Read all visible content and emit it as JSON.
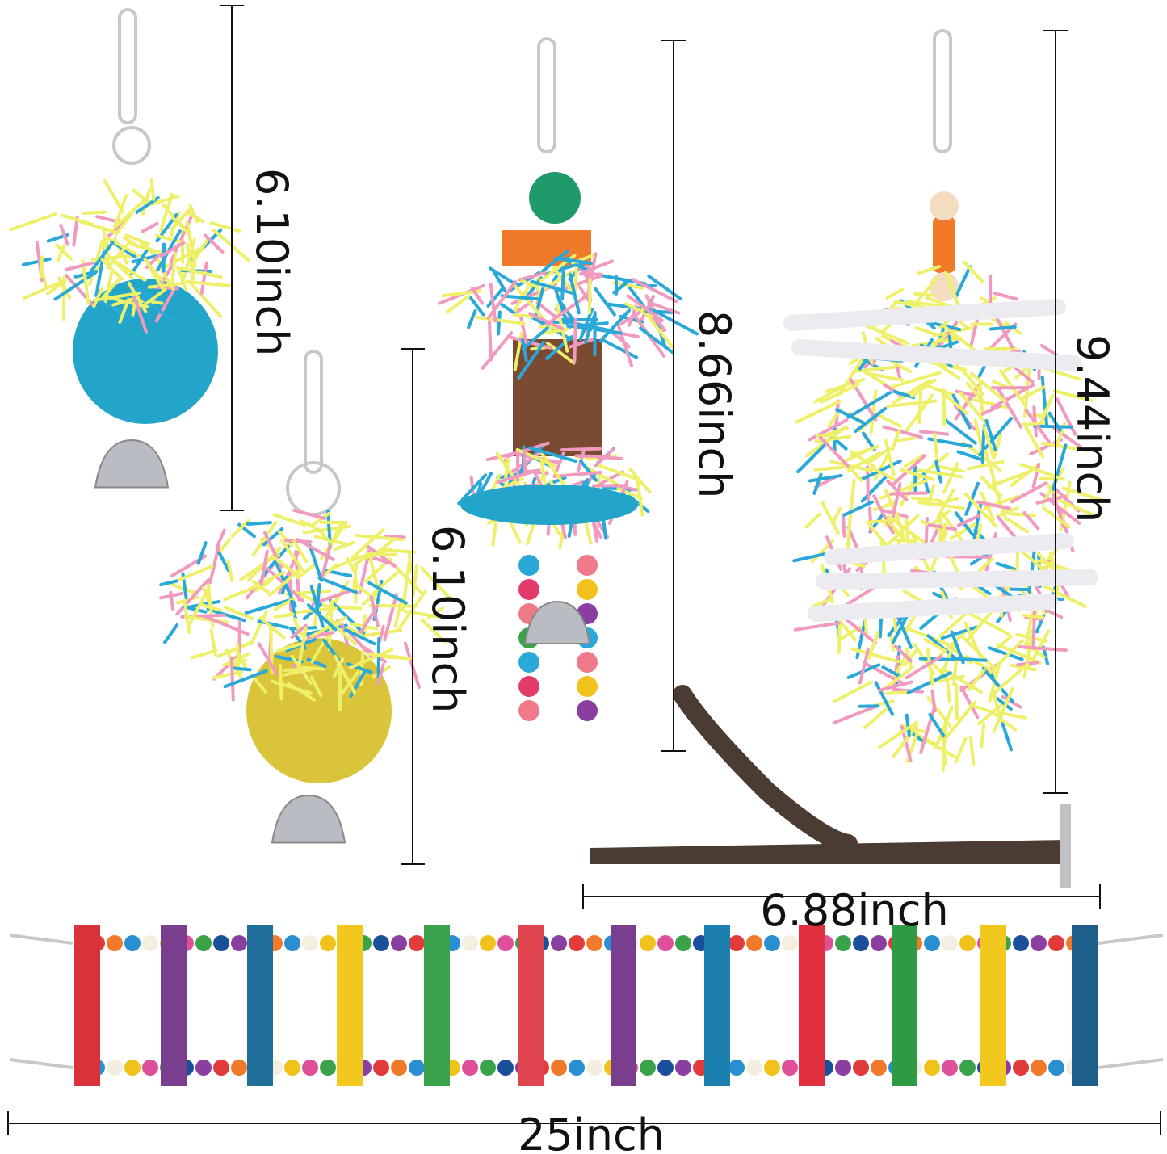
{
  "dimensions": {
    "ball_toy_small": "6.10inch",
    "ball_toy_large": "6.10inch",
    "shredder_toy": "8.66inch",
    "paper_stick_toy": "9.44inch",
    "perch": "6.88inch",
    "ladder": "25inch"
  },
  "colors": {
    "line": "#111111",
    "rung_colors": [
      "#d8323a",
      "#7a3e8e",
      "#1f6f9a",
      "#f2c81e",
      "#3aa24a",
      "#e0444f",
      "#7a3e8e",
      "#1b7fb0",
      "#e03040",
      "#2f9a44",
      "#f2c81e",
      "#1d5f8a"
    ],
    "bead_colors": [
      "#e23b3b",
      "#2a8fd0",
      "#f2c21c",
      "#3aa34a",
      "#8a3fa0",
      "#f07a2a",
      "#f3efe0",
      "#e04f9a",
      "#1a4f9a"
    ],
    "shred_yellow": "#eef06a",
    "shred_blue": "#2aa9d8",
    "shred_pink": "#f19ac0",
    "wicker_blue": "#22a5c8",
    "wicker_yellow": "#d9c43a",
    "wood": "#4a3b33",
    "metal": "#c8c8cc"
  }
}
